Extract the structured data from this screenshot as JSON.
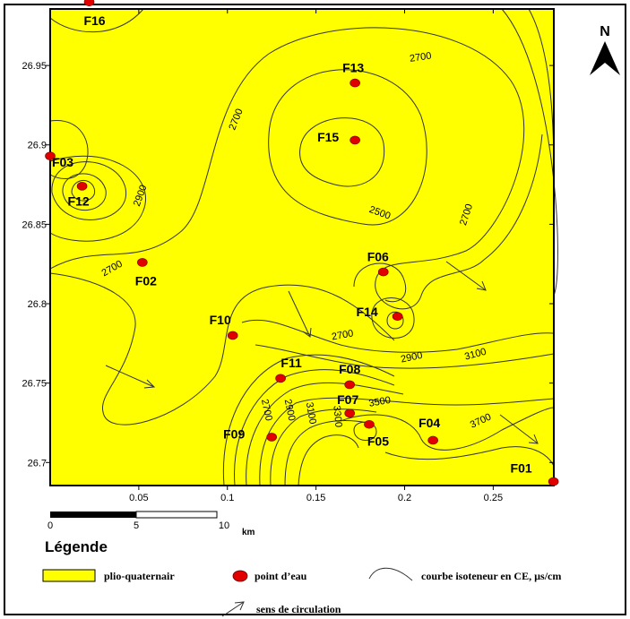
{
  "map": {
    "x_ticks": [
      "0.05",
      "0.1",
      "0.15",
      "0.2",
      "0.25"
    ],
    "y_ticks": [
      "26.95",
      "26.9",
      "26.85",
      "26.8",
      "26.75",
      "26.7"
    ],
    "north_label": "N",
    "wells": [
      {
        "id": "F16",
        "x": 0.022,
        "y": 26.99
      },
      {
        "id": "F13",
        "x": 0.172,
        "y": 26.939
      },
      {
        "id": "F15",
        "x": 0.172,
        "y": 26.903
      },
      {
        "id": "F03",
        "x": 0.0,
        "y": 26.893
      },
      {
        "id": "F12",
        "x": 0.018,
        "y": 26.874
      },
      {
        "id": "F02",
        "x": 0.052,
        "y": 26.826
      },
      {
        "id": "F06",
        "x": 0.188,
        "y": 26.82
      },
      {
        "id": "F14",
        "x": 0.196,
        "y": 26.792
      },
      {
        "id": "F10",
        "x": 0.103,
        "y": 26.78
      },
      {
        "id": "F11",
        "x": 0.13,
        "y": 26.753
      },
      {
        "id": "F08",
        "x": 0.169,
        "y": 26.749
      },
      {
        "id": "F07",
        "x": 0.169,
        "y": 26.731
      },
      {
        "id": "F05",
        "x": 0.18,
        "y": 26.724
      },
      {
        "id": "F04",
        "x": 0.216,
        "y": 26.714
      },
      {
        "id": "F09",
        "x": 0.125,
        "y": 26.716
      },
      {
        "id": "F01",
        "x": 0.284,
        "y": 26.688
      }
    ],
    "contour_labels": [
      {
        "text": "2700",
        "x": 0.209,
        "y": 26.955,
        "rot": -8
      },
      {
        "text": "2700",
        "x": 0.105,
        "y": 26.916,
        "rot": -68
      },
      {
        "text": "2500",
        "x": 0.186,
        "y": 26.857,
        "rot": 20
      },
      {
        "text": "2900",
        "x": 0.051,
        "y": 26.868,
        "rot": -70
      },
      {
        "text": "2700",
        "x": 0.235,
        "y": 26.856,
        "rot": -72
      },
      {
        "text": "2700",
        "x": 0.035,
        "y": 26.822,
        "rot": -30
      },
      {
        "text": "2700",
        "x": 0.165,
        "y": 26.78,
        "rot": -10
      },
      {
        "text": "2900",
        "x": 0.204,
        "y": 26.766,
        "rot": -12
      },
      {
        "text": "3100",
        "x": 0.24,
        "y": 26.768,
        "rot": -15
      },
      {
        "text": "2700",
        "x": 0.122,
        "y": 26.733,
        "rot": 78
      },
      {
        "text": "2900",
        "x": 0.135,
        "y": 26.733,
        "rot": 78
      },
      {
        "text": "3100",
        "x": 0.147,
        "y": 26.731,
        "rot": 80
      },
      {
        "text": "3300",
        "x": 0.162,
        "y": 26.729,
        "rot": 85
      },
      {
        "text": "3500",
        "x": 0.186,
        "y": 26.738,
        "rot": -10
      },
      {
        "text": "3700",
        "x": 0.243,
        "y": 26.726,
        "rot": -25
      }
    ]
  },
  "scale_bar": {
    "labels": [
      "0",
      "5",
      "10"
    ],
    "unit": "km"
  },
  "legend": {
    "title": "Légende",
    "items": [
      "plio-quaternair",
      "point d’eau",
      "courbe isoteneur en CE, µs/cm",
      "sens de circulation"
    ]
  },
  "colors": {
    "fill": "#ffff00",
    "well": "#e00000",
    "line": "#333333"
  }
}
